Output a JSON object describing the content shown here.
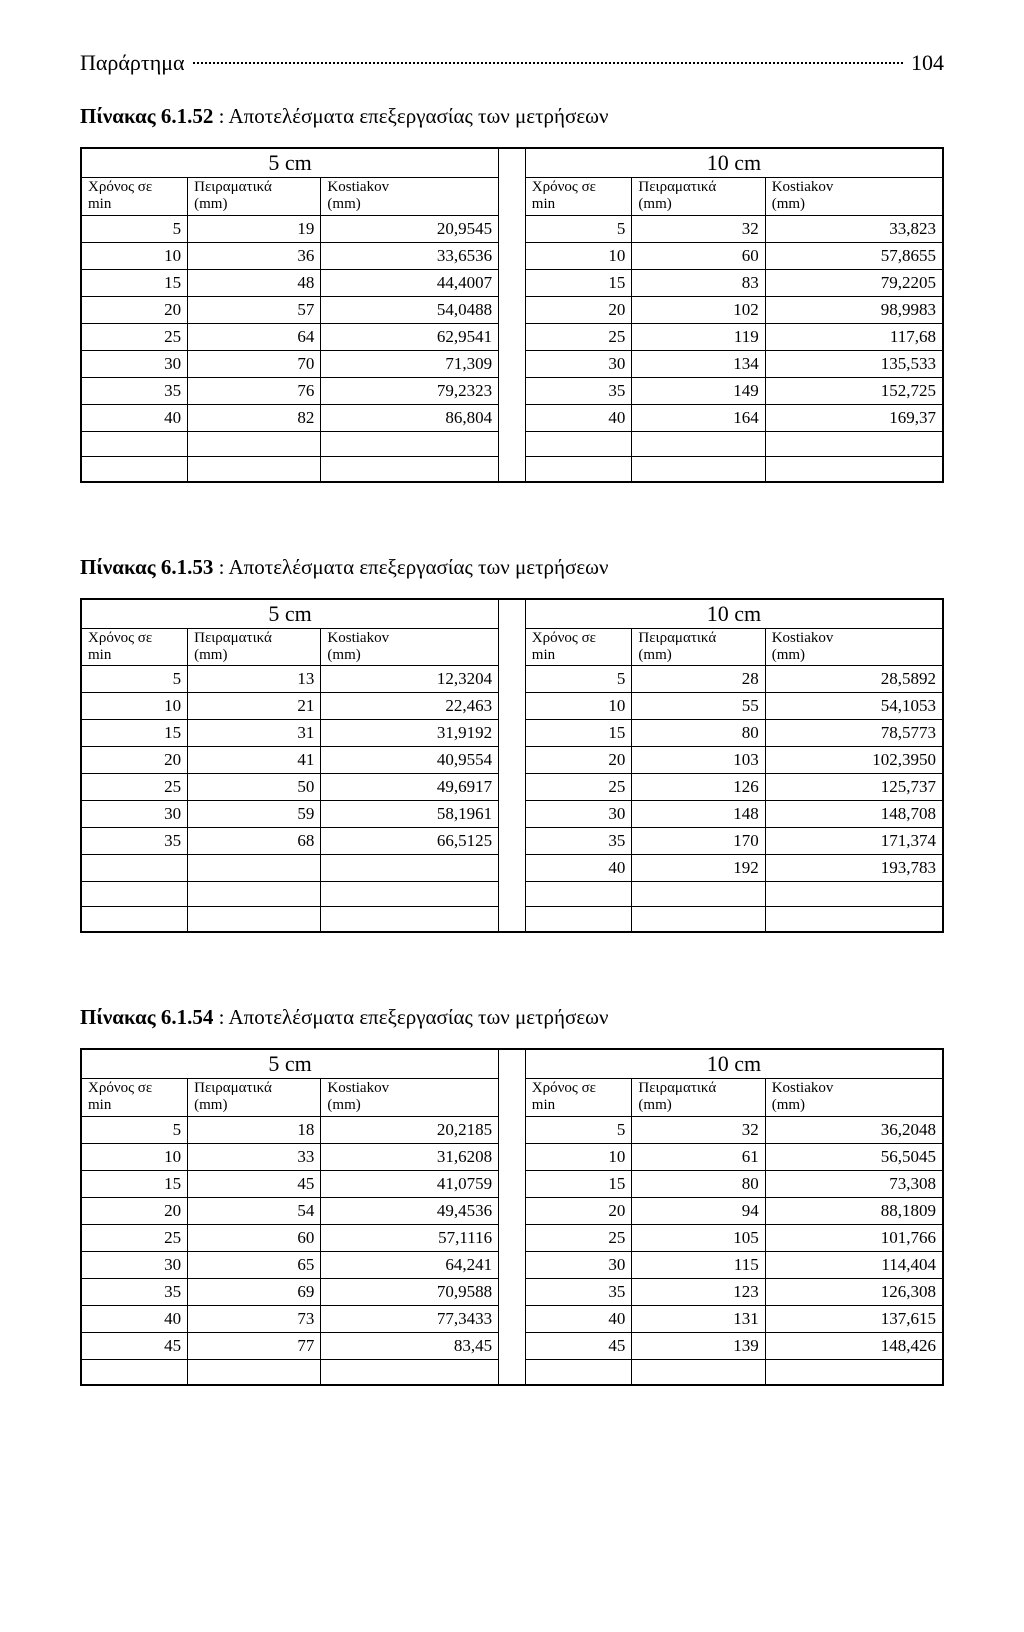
{
  "header": {
    "label": "Παράρτημα",
    "page": "104"
  },
  "tables": [
    {
      "caption_label": "Πίνακας 6.1.52",
      "caption_rest": " : Αποτελέσματα επεξεργασίας των μετρήσεων",
      "left_title": "5 cm",
      "right_title": "10 cm",
      "col_headers": {
        "time": "Χρόνος σε\nmin",
        "exp": "Πειραματικά\n(mm)",
        "kos": "Kostiakov\n(mm)"
      },
      "left_rows": [
        [
          5,
          19,
          "20,9545"
        ],
        [
          10,
          36,
          "33,6536"
        ],
        [
          15,
          48,
          "44,4007"
        ],
        [
          20,
          57,
          "54,0488"
        ],
        [
          25,
          64,
          "62,9541"
        ],
        [
          30,
          70,
          "71,309"
        ],
        [
          35,
          76,
          "79,2323"
        ],
        [
          40,
          82,
          "86,804"
        ]
      ],
      "right_rows": [
        [
          5,
          32,
          "33,823"
        ],
        [
          10,
          60,
          "57,8655"
        ],
        [
          15,
          83,
          "79,2205"
        ],
        [
          20,
          102,
          "98,9983"
        ],
        [
          25,
          119,
          "117,68"
        ],
        [
          30,
          134,
          "135,533"
        ],
        [
          35,
          149,
          "152,725"
        ],
        [
          40,
          164,
          "169,37"
        ]
      ],
      "trailing_blank_rows": 2
    },
    {
      "caption_label": "Πίνακας 6.1.53",
      "caption_rest": " : Αποτελέσματα επεξεργασίας των μετρήσεων",
      "left_title": "5 cm",
      "right_title": "10 cm",
      "col_headers": {
        "time": "Χρόνος σε\nmin",
        "exp": "Πειραματικά\n(mm)",
        "kos": "Kostiakov\n(mm)"
      },
      "left_rows": [
        [
          5,
          13,
          "12,3204"
        ],
        [
          10,
          21,
          "22,463"
        ],
        [
          15,
          31,
          "31,9192"
        ],
        [
          20,
          41,
          "40,9554"
        ],
        [
          25,
          50,
          "49,6917"
        ],
        [
          30,
          59,
          "58,1961"
        ],
        [
          35,
          68,
          "66,5125"
        ],
        [
          "",
          "",
          ""
        ]
      ],
      "right_rows": [
        [
          5,
          28,
          "28,5892"
        ],
        [
          10,
          55,
          "54,1053"
        ],
        [
          15,
          80,
          "78,5773"
        ],
        [
          20,
          103,
          "102,3950"
        ],
        [
          25,
          126,
          "125,737"
        ],
        [
          30,
          148,
          "148,708"
        ],
        [
          35,
          170,
          "171,374"
        ],
        [
          40,
          192,
          "193,783"
        ]
      ],
      "trailing_blank_rows": 2
    },
    {
      "caption_label": "Πίνακας 6.1.54",
      "caption_rest": " : Αποτελέσματα επεξεργασίας των μετρήσεων",
      "left_title": "5 cm",
      "right_title": "10 cm",
      "col_headers": {
        "time": "Χρόνος σε\nmin",
        "exp": "Πειραματικά\n(mm)",
        "kos": "Kostiakov\n(mm)"
      },
      "left_rows": [
        [
          5,
          18,
          "20,2185"
        ],
        [
          10,
          33,
          "31,6208"
        ],
        [
          15,
          45,
          "41,0759"
        ],
        [
          20,
          54,
          "49,4536"
        ],
        [
          25,
          60,
          "57,1116"
        ],
        [
          30,
          65,
          "64,241"
        ],
        [
          35,
          69,
          "70,9588"
        ],
        [
          40,
          73,
          "77,3433"
        ],
        [
          45,
          77,
          "83,45"
        ]
      ],
      "right_rows": [
        [
          5,
          32,
          "36,2048"
        ],
        [
          10,
          61,
          "56,5045"
        ],
        [
          15,
          80,
          "73,308"
        ],
        [
          20,
          94,
          "88,1809"
        ],
        [
          25,
          105,
          "101,766"
        ],
        [
          30,
          115,
          "114,404"
        ],
        [
          35,
          123,
          "126,308"
        ],
        [
          40,
          131,
          "137,615"
        ],
        [
          45,
          139,
          "148,426"
        ]
      ],
      "trailing_blank_rows": 1
    }
  ],
  "layout": {
    "col_widths_pct": [
      12,
      15,
      20,
      3,
      12,
      15,
      20
    ],
    "gap_border_color": "#000000"
  }
}
